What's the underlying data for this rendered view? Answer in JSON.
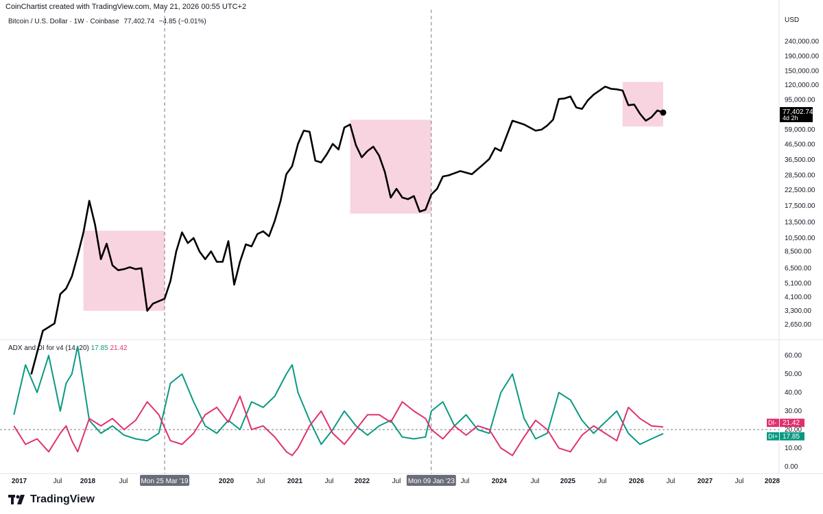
{
  "header": {
    "credit": "CoinChartist created with TradingView.com, May 21, 2026 00:55 UTC+2"
  },
  "symbol": {
    "name": "Bitcoin / U.S. Dollar · 1W · Coinbase",
    "last": "77,402.74",
    "change": "−4.85 (−0.01%)"
  },
  "indicator": {
    "name": "ADX and DI for v4 (14, 20)",
    "di_plus": "17.85",
    "di_minus": "21.42"
  },
  "price_label": {
    "value": "77,402.74",
    "countdown": "4d 2h"
  },
  "di_tags": {
    "minus_label": "DI-",
    "minus_value": "21.42",
    "plus_label": "DI+",
    "plus_value": "17.85"
  },
  "crosshair_labels": [
    "Mon 25 Mar '19",
    "Mon 09 Jan '23"
  ],
  "brand": {
    "name": "TradingView"
  },
  "colors": {
    "price": "#000000",
    "di_plus": "#089981",
    "di_minus": "#e0306f",
    "highlight": "#f8d3e0"
  },
  "chart_data": [
    {
      "type": "line",
      "title": "Bitcoin / U.S. Dollar · 1W · Coinbase",
      "scale": "log",
      "currency": "USD",
      "y_ticks": [
        240000,
        190000,
        150000,
        120000,
        95000,
        59000,
        46500,
        36500,
        28500,
        22500,
        17500,
        13500,
        10500,
        8500,
        6500,
        5100,
        4100,
        3300,
        2650
      ],
      "y_tick_labels": [
        "240,000.00",
        "190,000.00",
        "150,000.00",
        "120,000.00",
        "95,000.00",
        "59,000.00",
        "46,500.00",
        "36,500.00",
        "28,500.00",
        "22,500.00",
        "17,500.00",
        "13,500.00",
        "10,500.00",
        "8,500.00",
        "6,500.00",
        "5,100.00",
        "4,100.00",
        "3,300.00",
        "2,650.00"
      ],
      "x_tick_labels": [
        "2017",
        "Jul",
        "2018",
        "Jul",
        "2020",
        "Jul",
        "2021",
        "Jul",
        "2022",
        "Jul",
        "Jul",
        "2024",
        "Jul",
        "2025",
        "Jul",
        "2026",
        "Jul",
        "2027",
        "Jul",
        "2028"
      ],
      "series": [
        {
          "name": "Bitcoin / U.S. Dollar",
          "x": [
            "2017-04",
            "2017-06",
            "2017-08",
            "2017-09",
            "2017-10",
            "2017-11",
            "2017-12",
            "2018-01",
            "2018-02",
            "2018-03",
            "2018-04",
            "2018-05",
            "2018-06",
            "2018-07",
            "2018-08",
            "2018-09",
            "2018-10",
            "2018-11",
            "2018-12",
            "2019-01",
            "2019-03",
            "2019-04",
            "2019-05",
            "2019-06",
            "2019-07",
            "2019-08",
            "2019-09",
            "2019-10",
            "2019-11",
            "2019-12",
            "2020-01",
            "2020-02",
            "2020-03",
            "2020-04",
            "2020-05",
            "2020-06",
            "2020-07",
            "2020-08",
            "2020-09",
            "2020-10",
            "2020-11",
            "2020-12",
            "2021-01",
            "2021-02",
            "2021-03",
            "2021-04",
            "2021-05",
            "2021-06",
            "2021-07",
            "2021-08",
            "2021-09",
            "2021-10",
            "2021-11",
            "2021-12",
            "2022-01",
            "2022-02",
            "2022-03",
            "2022-04",
            "2022-05",
            "2022-06",
            "2022-07",
            "2022-08",
            "2022-09",
            "2022-10",
            "2022-11",
            "2022-12",
            "2023-01",
            "2023-02",
            "2023-03",
            "2023-04",
            "2023-06",
            "2023-08",
            "2023-10",
            "2023-11",
            "2023-12",
            "2024-01",
            "2024-03",
            "2024-05",
            "2024-07",
            "2024-08",
            "2024-09",
            "2024-10",
            "2024-11",
            "2024-12",
            "2025-01",
            "2025-02",
            "2025-03",
            "2025-04",
            "2025-05",
            "2025-07",
            "2025-08",
            "2025-09",
            "2025-10",
            "2025-11",
            "2025-12",
            "2026-01",
            "2026-02",
            "2026-03",
            "2026-04",
            "2026-05"
          ],
          "values": [
            1200,
            2400,
            2700,
            4300,
            4700,
            5700,
            8000,
            11500,
            19000,
            13000,
            7500,
            9600,
            6800,
            6300,
            6400,
            6600,
            6400,
            6500,
            3300,
            3700,
            4000,
            5300,
            8500,
            11500,
            9700,
            10500,
            8500,
            7500,
            8500,
            7200,
            7200,
            10000,
            5000,
            7200,
            9500,
            9200,
            11200,
            11700,
            10800,
            13800,
            19000,
            29000,
            33000,
            47000,
            58000,
            57000,
            36000,
            35000,
            40000,
            47000,
            43000,
            61000,
            64000,
            46000,
            38000,
            42000,
            45000,
            39000,
            30000,
            20000,
            23000,
            20000,
            19500,
            20500,
            16000,
            16500,
            21000,
            23000,
            28000,
            28500,
            30500,
            29000,
            34000,
            37000,
            44000,
            42000,
            68000,
            64000,
            58000,
            59000,
            63000,
            69000,
            96000,
            97000,
            100000,
            84000,
            82000,
            94000,
            103000,
            117000,
            113000,
            112000,
            110000,
            87000,
            88000,
            76000,
            68000,
            72000,
            80000,
            77402
          ]
        }
      ],
      "highlight_zones": [
        {
          "x_start": "2018-01",
          "x_end": "2019-03",
          "y_low": 3300,
          "y_high": 11800
        },
        {
          "x_start": "2021-11",
          "x_end": "2023-01",
          "y_low": 15500,
          "y_high": 69000
        },
        {
          "x_start": "2025-10",
          "x_end": "2026-05",
          "y_low": 62000,
          "y_high": 126000
        }
      ]
    },
    {
      "type": "line",
      "title": "ADX and DI for v4 (14, 20)",
      "y_ticks": [
        60,
        50,
        40,
        30,
        20,
        10,
        0
      ],
      "y_tick_labels": [
        "60.00",
        "50.00",
        "40.00",
        "30.00",
        "20.00",
        "10.00",
        "0.00"
      ],
      "reference_line": 20,
      "series": [
        {
          "name": "DI+",
          "x": [
            "2017-01",
            "2017-03",
            "2017-05",
            "2017-07",
            "2017-09",
            "2017-10",
            "2017-11",
            "2017-12",
            "2018-02",
            "2018-04",
            "2018-06",
            "2018-08",
            "2018-10",
            "2018-12",
            "2019-02",
            "2019-04",
            "2019-06",
            "2019-08",
            "2019-10",
            "2019-12",
            "2020-02",
            "2020-04",
            "2020-06",
            "2020-08",
            "2020-10",
            "2020-12",
            "2021-01",
            "2021-02",
            "2021-04",
            "2021-06",
            "2021-08",
            "2021-10",
            "2021-12",
            "2022-02",
            "2022-04",
            "2022-06",
            "2022-08",
            "2022-10",
            "2022-12",
            "2023-01",
            "2023-03",
            "2023-05",
            "2023-07",
            "2023-09",
            "2023-11",
            "2024-01",
            "2024-03",
            "2024-05",
            "2024-07",
            "2024-09",
            "2024-11",
            "2025-01",
            "2025-03",
            "2025-05",
            "2025-07",
            "2025-09",
            "2025-11",
            "2026-01",
            "2026-03",
            "2026-05"
          ],
          "values": [
            28,
            55,
            40,
            60,
            30,
            45,
            50,
            65,
            25,
            18,
            22,
            17,
            15,
            14,
            18,
            45,
            50,
            35,
            22,
            18,
            25,
            20,
            35,
            32,
            38,
            50,
            55,
            40,
            25,
            12,
            20,
            30,
            22,
            17,
            22,
            25,
            16,
            15,
            16,
            30,
            35,
            22,
            28,
            20,
            18,
            40,
            50,
            26,
            15,
            18,
            40,
            36,
            25,
            18,
            24,
            30,
            18,
            12,
            15,
            17.85
          ]
        },
        {
          "name": "DI-",
          "x": [
            "2017-01",
            "2017-03",
            "2017-05",
            "2017-07",
            "2017-09",
            "2017-10",
            "2017-11",
            "2017-12",
            "2018-02",
            "2018-04",
            "2018-06",
            "2018-08",
            "2018-10",
            "2018-12",
            "2019-02",
            "2019-04",
            "2019-06",
            "2019-08",
            "2019-10",
            "2019-12",
            "2020-02",
            "2020-04",
            "2020-06",
            "2020-08",
            "2020-10",
            "2020-12",
            "2021-01",
            "2021-02",
            "2021-04",
            "2021-06",
            "2021-08",
            "2021-10",
            "2021-12",
            "2022-02",
            "2022-04",
            "2022-06",
            "2022-08",
            "2022-10",
            "2022-12",
            "2023-01",
            "2023-03",
            "2023-05",
            "2023-07",
            "2023-09",
            "2023-11",
            "2024-01",
            "2024-03",
            "2024-05",
            "2024-07",
            "2024-09",
            "2024-11",
            "2025-01",
            "2025-03",
            "2025-05",
            "2025-07",
            "2025-09",
            "2025-11",
            "2026-01",
            "2026-03",
            "2026-05"
          ],
          "values": [
            22,
            12,
            15,
            8,
            18,
            22,
            14,
            8,
            26,
            22,
            26,
            20,
            25,
            35,
            28,
            14,
            12,
            18,
            28,
            32,
            24,
            38,
            20,
            22,
            16,
            8,
            6,
            10,
            22,
            30,
            18,
            12,
            20,
            28,
            28,
            24,
            35,
            30,
            26,
            20,
            15,
            22,
            17,
            22,
            20,
            10,
            6,
            16,
            25,
            20,
            10,
            8,
            17,
            22,
            18,
            14,
            32,
            26,
            22,
            21.42
          ]
        }
      ]
    }
  ]
}
